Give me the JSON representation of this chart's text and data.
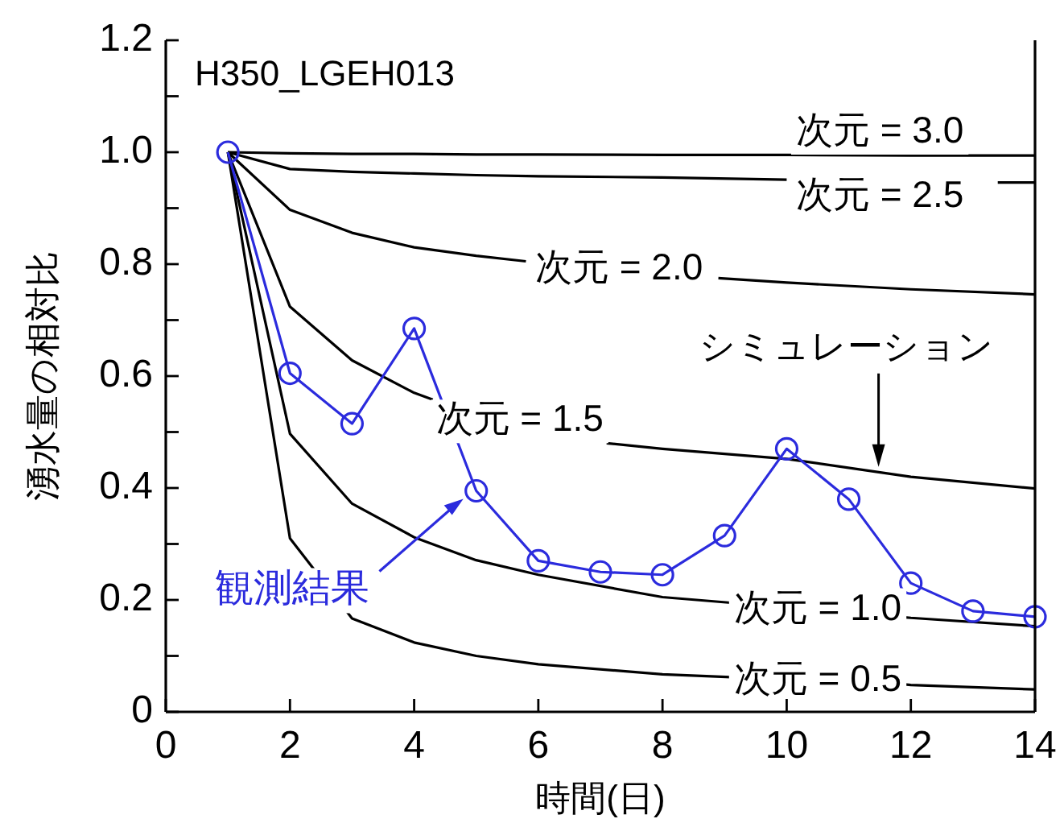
{
  "chart_data": {
    "type": "line",
    "xlabel": "時間(日)",
    "ylabel": "湧水量の相対比",
    "xlim": [
      0,
      14
    ],
    "xticks": [
      0,
      2,
      4,
      6,
      8,
      10,
      12,
      14
    ],
    "ylim": [
      0,
      1.2
    ],
    "yticks": [
      0,
      {
        "value": 0.1,
        "label": null
      },
      0.2,
      {
        "value": 0.3,
        "label": null
      },
      0.4,
      {
        "value": 0.5,
        "label": null
      },
      0.6,
      {
        "value": 0.7,
        "label": null
      },
      0.8,
      {
        "value": 0.9,
        "label": null
      },
      {
        "value": 1,
        "label": "1.0"
      },
      {
        "value": 1.1,
        "label": null
      },
      1.2
    ],
    "grid": false,
    "legend": false,
    "series": [
      {
        "name": "次元 = 3.0",
        "color": "#000000",
        "marker": "none",
        "x": [
          1,
          2,
          3,
          4,
          5,
          6,
          8,
          10,
          12,
          14
        ],
        "values": [
          1,
          0.998,
          0.997,
          0.997,
          0.996,
          0.996,
          0.995,
          0.995,
          0.994,
          0.994
        ]
      },
      {
        "name": "次元 = 2.5",
        "color": "#000000",
        "marker": "none",
        "x": [
          1,
          2,
          3,
          4,
          5,
          6,
          8,
          10,
          11.5,
          13.4,
          14
        ],
        "values": [
          1,
          0.97,
          0.965,
          0.962,
          0.959,
          0.957,
          0.955,
          0.951,
          null,
          0.946,
          0.946
        ]
      },
      {
        "name": "次元 = 2.0",
        "color": "#000000",
        "marker": "none",
        "x": [
          1,
          2,
          3,
          4,
          5,
          5.8,
          7,
          8.9,
          10,
          12,
          14
        ],
        "values": [
          1,
          0.897,
          0.856,
          0.83,
          0.815,
          0.805,
          null,
          0.775,
          0.767,
          0.755,
          0.746
        ]
      },
      {
        "name": "次元 = 1.5",
        "color": "#000000",
        "marker": "none",
        "x": [
          1,
          2,
          3,
          4,
          4.3,
          5.5,
          7.1,
          8,
          10,
          12,
          14
        ],
        "values": [
          1,
          0.724,
          0.628,
          0.57,
          0.558,
          null,
          0.48,
          0.47,
          0.452,
          0.42,
          0.399
        ]
      },
      {
        "name": "次元 = 1.0",
        "color": "#000000",
        "marker": "none",
        "x": [
          1,
          2,
          3,
          4,
          5,
          6,
          8,
          9.1,
          10.5,
          11.9,
          12,
          14
        ],
        "values": [
          1,
          0.497,
          0.372,
          0.312,
          0.271,
          0.245,
          0.205,
          0.195,
          null,
          0.169,
          0.168,
          0.153
        ]
      },
      {
        "name": "次元 = 0.5",
        "color": "#000000",
        "marker": "none",
        "x": [
          1,
          2,
          3,
          4,
          5,
          6,
          8,
          9.1,
          10.5,
          11.9,
          12,
          14
        ],
        "values": [
          1,
          0.31,
          0.167,
          0.124,
          0.1,
          0.085,
          0.067,
          0.062,
          null,
          0.049,
          0.048,
          0.04
        ]
      },
      {
        "name": "観測結果",
        "color": "#2b2bdd",
        "marker": "circle",
        "x": [
          1,
          2,
          3,
          4,
          5,
          6,
          7,
          8,
          9,
          10,
          11,
          12,
          13,
          14
        ],
        "values": [
          1,
          0.605,
          0.515,
          0.685,
          0.395,
          0.27,
          0.25,
          0.245,
          0.315,
          0.47,
          0.38,
          0.23,
          0.18,
          0.17
        ]
      }
    ],
    "annotations": [
      "H350_LGEH013",
      "シミュレーション"
    ]
  }
}
